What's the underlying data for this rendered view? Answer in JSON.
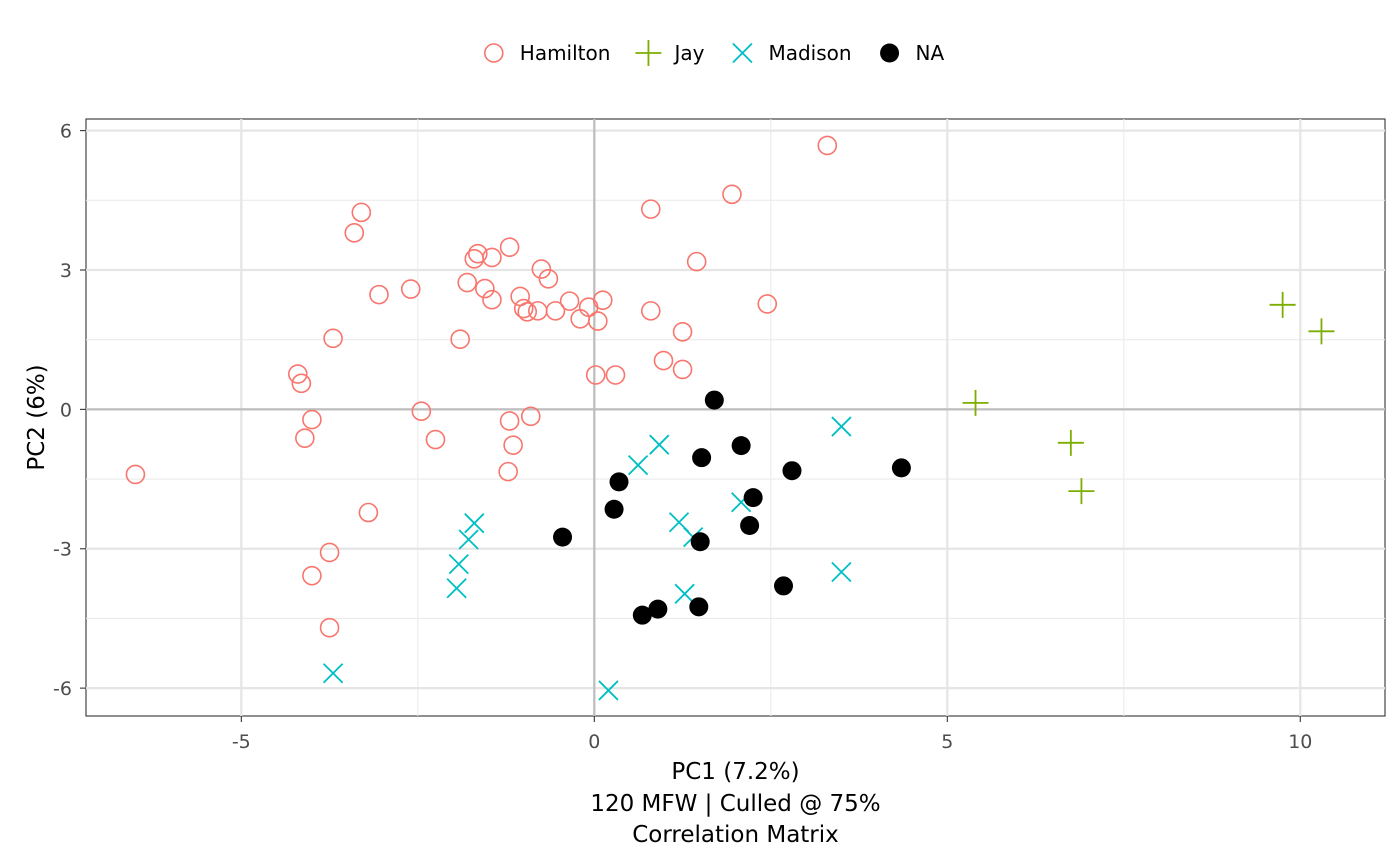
{
  "chart_data": {
    "type": "scatter",
    "xlabel": "PC1 (7.2%)",
    "caption_lines": [
      "120 MFW | Culled @ 75%",
      "Correlation Matrix"
    ],
    "ylabel": "PC2 (6%)",
    "xlim": [
      -7.2,
      11.2
    ],
    "ylim": [
      -6.6,
      6.25
    ],
    "x_ticks": [
      -5,
      0,
      5,
      10
    ],
    "x_tick_labels": [
      "-5",
      "0",
      "5",
      "10"
    ],
    "y_ticks": [
      -6,
      -3,
      0,
      3,
      6
    ],
    "y_tick_labels": [
      "-6",
      "-3",
      "0",
      "3",
      "6"
    ],
    "grid": true,
    "legend_position": "top",
    "series": [
      {
        "name": "Hamilton",
        "color": "#F8766D",
        "marker": "open-circle",
        "points": [
          [
            3.3,
            5.68
          ],
          [
            1.95,
            4.63
          ],
          [
            0.8,
            4.31
          ],
          [
            -3.3,
            4.24
          ],
          [
            -3.4,
            3.8
          ],
          [
            -1.2,
            3.49
          ],
          [
            -1.65,
            3.35
          ],
          [
            -1.7,
            3.24
          ],
          [
            -1.45,
            3.27
          ],
          [
            1.45,
            3.18
          ],
          [
            -0.75,
            3.02
          ],
          [
            -0.65,
            2.81
          ],
          [
            -1.8,
            2.73
          ],
          [
            -1.55,
            2.6
          ],
          [
            -2.6,
            2.59
          ],
          [
            -3.05,
            2.47
          ],
          [
            -1.05,
            2.43
          ],
          [
            -1.45,
            2.36
          ],
          [
            -0.35,
            2.33
          ],
          [
            0.12,
            2.35
          ],
          [
            2.45,
            2.27
          ],
          [
            -0.08,
            2.2
          ],
          [
            -1.0,
            2.17
          ],
          [
            -0.95,
            2.1
          ],
          [
            -0.8,
            2.12
          ],
          [
            -0.55,
            2.12
          ],
          [
            0.8,
            2.12
          ],
          [
            -0.2,
            1.95
          ],
          [
            0.05,
            1.9
          ],
          [
            1.25,
            1.67
          ],
          [
            -3.7,
            1.53
          ],
          [
            -1.9,
            1.51
          ],
          [
            0.98,
            1.05
          ],
          [
            1.25,
            0.86
          ],
          [
            0.3,
            0.74
          ],
          [
            0.02,
            0.74
          ],
          [
            -4.2,
            0.76
          ],
          [
            -4.15,
            0.56
          ],
          [
            -2.45,
            -0.04
          ],
          [
            -0.9,
            -0.15
          ],
          [
            -4.0,
            -0.22
          ],
          [
            -1.2,
            -0.25
          ],
          [
            -4.1,
            -0.62
          ],
          [
            -2.25,
            -0.65
          ],
          [
            -1.15,
            -0.77
          ],
          [
            -1.22,
            -1.34
          ],
          [
            -6.5,
            -1.4
          ],
          [
            -3.2,
            -2.22
          ],
          [
            -3.75,
            -3.08
          ],
          [
            -4.0,
            -3.58
          ],
          [
            -3.75,
            -4.7
          ]
        ]
      },
      {
        "name": "Jay",
        "color": "#7CAE00",
        "marker": "plus",
        "points": [
          [
            9.75,
            2.25
          ],
          [
            10.3,
            1.68
          ],
          [
            5.4,
            0.14
          ],
          [
            6.75,
            -0.72
          ],
          [
            6.9,
            -1.76
          ]
        ]
      },
      {
        "name": "Madison",
        "color": "#00BFC4",
        "marker": "x",
        "points": [
          [
            3.5,
            -0.37
          ],
          [
            0.92,
            -0.76
          ],
          [
            0.62,
            -1.2
          ],
          [
            2.08,
            -2.0
          ],
          [
            -1.7,
            -2.45
          ],
          [
            1.2,
            -2.43
          ],
          [
            -1.78,
            -2.8
          ],
          [
            1.4,
            -2.75
          ],
          [
            -1.92,
            -3.33
          ],
          [
            3.5,
            -3.5
          ],
          [
            -1.95,
            -3.85
          ],
          [
            1.28,
            -3.97
          ],
          [
            -3.7,
            -5.68
          ],
          [
            0.2,
            -6.05
          ]
        ]
      },
      {
        "name": "NA",
        "color": "#000000",
        "marker": "filled-circle",
        "points": [
          [
            1.7,
            0.2
          ],
          [
            2.08,
            -0.78
          ],
          [
            1.52,
            -1.04
          ],
          [
            2.8,
            -1.32
          ],
          [
            4.35,
            -1.26
          ],
          [
            0.35,
            -1.56
          ],
          [
            2.25,
            -1.9
          ],
          [
            0.28,
            -2.15
          ],
          [
            2.2,
            -2.5
          ],
          [
            -0.45,
            -2.75
          ],
          [
            1.5,
            -2.85
          ],
          [
            2.68,
            -3.8
          ],
          [
            0.9,
            -4.3
          ],
          [
            1.48,
            -4.25
          ],
          [
            0.68,
            -4.43
          ]
        ]
      }
    ]
  }
}
